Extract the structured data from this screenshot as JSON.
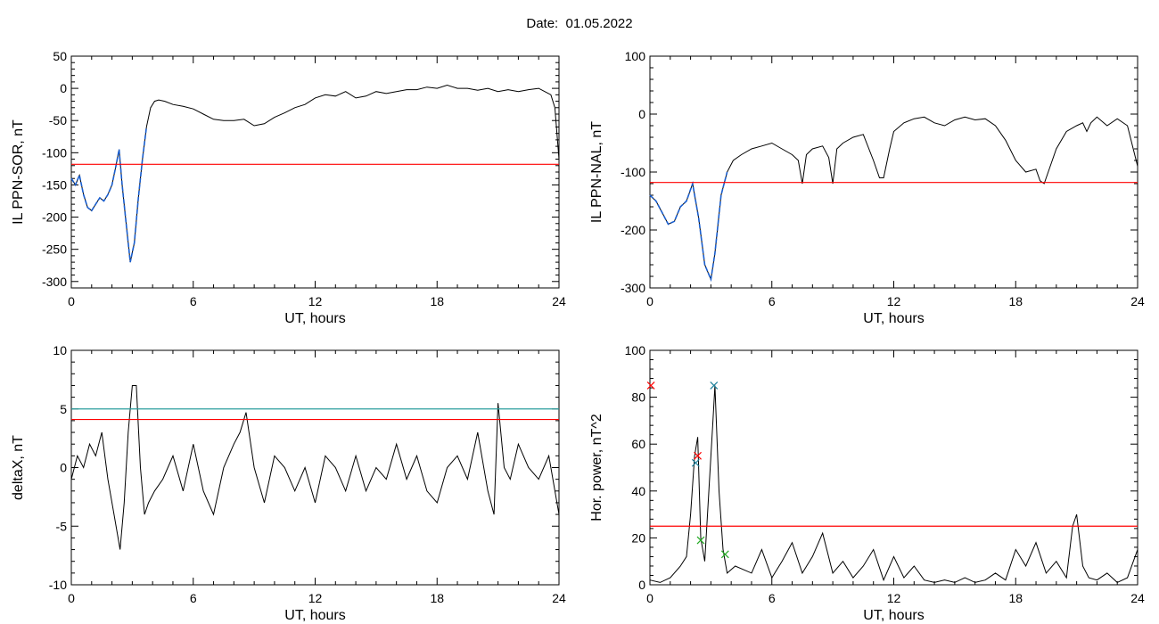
{
  "figure": {
    "title": "Date:  01.05.2022"
  },
  "chart_data": [
    {
      "type": "line",
      "xlabel": "UT, hours",
      "ylabel": "IL PPN-SOR, nT",
      "xlim": [
        0,
        24
      ],
      "ylim": [
        -310,
        50
      ],
      "xticks": [
        0,
        6,
        12,
        18,
        24
      ],
      "yticks": [
        50,
        0,
        -50,
        -100,
        -150,
        -200,
        -250,
        -300
      ],
      "threshold": -118,
      "threshold_color": "#ff0000",
      "series": [
        {
          "color": "#000000",
          "x": [
            0,
            0.2,
            0.4,
            0.6,
            0.8,
            1.0,
            1.2,
            1.4,
            1.6,
            1.8,
            2.0,
            2.2,
            2.35,
            2.5,
            2.7,
            2.9,
            3.1,
            3.3,
            3.5,
            3.7,
            3.9,
            4.1,
            4.3,
            4.6,
            5,
            5.5,
            6,
            6.5,
            7,
            7.5,
            8,
            8.5,
            9,
            9.5,
            10,
            10.5,
            11,
            11.5,
            12,
            12.5,
            13,
            13.5,
            14,
            14.5,
            15,
            15.5,
            16,
            16.5,
            17,
            17.5,
            18,
            18.5,
            19,
            19.5,
            20,
            20.5,
            21,
            21.5,
            22,
            22.5,
            23,
            23.3,
            23.6,
            23.8,
            24
          ],
          "y": [
            -140,
            -150,
            -135,
            -165,
            -185,
            -190,
            -180,
            -170,
            -175,
            -165,
            -150,
            -120,
            -95,
            -150,
            -210,
            -270,
            -240,
            -170,
            -110,
            -60,
            -30,
            -20,
            -18,
            -20,
            -25,
            -28,
            -32,
            -40,
            -48,
            -50,
            -50,
            -48,
            -58,
            -55,
            -45,
            -38,
            -30,
            -25,
            -15,
            -10,
            -12,
            -5,
            -15,
            -12,
            -5,
            -8,
            -5,
            -2,
            -2,
            2,
            0,
            5,
            0,
            0,
            -3,
            0,
            -5,
            -2,
            -5,
            -2,
            0,
            -5,
            -10,
            -30,
            -110
          ]
        },
        {
          "color": "#1a5fd0",
          "x": [
            0,
            0.2,
            0.4,
            0.6,
            0.8,
            1.0,
            1.2,
            1.4,
            1.6,
            1.8,
            2.0,
            2.2,
            2.35,
            2.5,
            2.7,
            2.9,
            3.1,
            3.3,
            3.5,
            3.7
          ],
          "y": [
            -140,
            -150,
            -135,
            -165,
            -185,
            -190,
            -180,
            -170,
            -175,
            -165,
            -150,
            -120,
            -95,
            -150,
            -210,
            -270,
            -240,
            -170,
            -110,
            -60
          ]
        }
      ]
    },
    {
      "type": "line",
      "xlabel": "UT, hours",
      "ylabel": "IL PPN-NAL, nT",
      "xlim": [
        0,
        24
      ],
      "ylim": [
        -300,
        100
      ],
      "xticks": [
        0,
        6,
        12,
        18,
        24
      ],
      "yticks": [
        100,
        0,
        -100,
        -200,
        -300
      ],
      "threshold": -118,
      "threshold_color": "#ff0000",
      "series": [
        {
          "color": "#000000",
          "x": [
            0,
            0.3,
            0.6,
            0.9,
            1.2,
            1.5,
            1.8,
            2.1,
            2.4,
            2.7,
            3.0,
            3.2,
            3.5,
            3.8,
            4.1,
            4.5,
            5,
            5.5,
            6,
            6.5,
            7,
            7.3,
            7.5,
            7.7,
            8,
            8.5,
            8.8,
            9,
            9.2,
            9.5,
            10,
            10.5,
            11,
            11.3,
            11.5,
            11.8,
            12,
            12.5,
            13,
            13.5,
            14,
            14.5,
            15,
            15.5,
            16,
            16.5,
            17,
            17.5,
            18,
            18.5,
            19,
            19.2,
            19.4,
            19.7,
            20,
            20.5,
            21,
            21.3,
            21.5,
            21.7,
            22,
            22.5,
            23,
            23.5,
            24
          ],
          "y": [
            -140,
            -150,
            -170,
            -190,
            -185,
            -160,
            -150,
            -120,
            -180,
            -260,
            -285,
            -240,
            -140,
            -100,
            -80,
            -70,
            -60,
            -55,
            -50,
            -60,
            -70,
            -80,
            -120,
            -70,
            -60,
            -55,
            -75,
            -120,
            -60,
            -50,
            -40,
            -35,
            -80,
            -110,
            -110,
            -60,
            -30,
            -15,
            -8,
            -5,
            -15,
            -20,
            -10,
            -5,
            -10,
            -8,
            -20,
            -45,
            -80,
            -100,
            -95,
            -115,
            -120,
            -90,
            -60,
            -30,
            -20,
            -15,
            -30,
            -15,
            -5,
            -20,
            -8,
            -20,
            -90
          ]
        },
        {
          "color": "#1a5fd0",
          "x": [
            0,
            0.3,
            0.6,
            0.9,
            1.2,
            1.5,
            1.8,
            2.1,
            2.4,
            2.7,
            3.0,
            3.2,
            3.5,
            3.8
          ],
          "y": [
            -140,
            -150,
            -170,
            -190,
            -185,
            -160,
            -150,
            -120,
            -180,
            -260,
            -285,
            -240,
            -140,
            -100
          ]
        }
      ]
    },
    {
      "type": "line",
      "xlabel": "UT, hours",
      "ylabel": "deltaX, nT",
      "xlim": [
        0,
        24
      ],
      "ylim": [
        -10,
        10
      ],
      "xticks": [
        0,
        6,
        12,
        18,
        24
      ],
      "yticks": [
        10,
        5,
        0,
        -5,
        -10
      ],
      "thresholds": [
        {
          "value": 5.0,
          "color": "#2a9d9d"
        },
        {
          "value": 4.1,
          "color": "#ff0000"
        }
      ],
      "series": [
        {
          "color": "#000000",
          "x": [
            0,
            0.3,
            0.6,
            0.9,
            1.2,
            1.5,
            1.8,
            2.1,
            2.4,
            2.6,
            2.8,
            3.0,
            3.2,
            3.4,
            3.6,
            3.8,
            4.1,
            4.5,
            5,
            5.5,
            6,
            6.5,
            7,
            7.5,
            8,
            8.3,
            8.6,
            9,
            9.5,
            10,
            10.5,
            11,
            11.5,
            12,
            12.5,
            13,
            13.5,
            14,
            14.5,
            15,
            15.5,
            16,
            16.5,
            17,
            17.5,
            18,
            18.5,
            19,
            19.5,
            20,
            20.5,
            20.8,
            21,
            21.3,
            21.6,
            22,
            22.5,
            23,
            23.5,
            24
          ],
          "y": [
            -1,
            1,
            0,
            2,
            1,
            3,
            -1,
            -4,
            -7,
            -3,
            3,
            7,
            7,
            0,
            -4,
            -3,
            -2,
            -1,
            1,
            -2,
            2,
            -2,
            -4,
            0,
            2,
            3,
            4.7,
            0,
            -3,
            1,
            0,
            -2,
            0,
            -3,
            1,
            0,
            -2,
            1,
            -2,
            0,
            -1,
            2,
            -1,
            1,
            -2,
            -3,
            0,
            1,
            -1,
            3,
            -2,
            -4,
            5.5,
            0,
            -1,
            2,
            0,
            -1,
            1,
            -4
          ]
        }
      ]
    },
    {
      "type": "line",
      "xlabel": "UT, hours",
      "ylabel": "Hor. power, nT^2",
      "xlim": [
        0,
        24
      ],
      "ylim": [
        0,
        100
      ],
      "xticks": [
        0,
        6,
        12,
        18,
        24
      ],
      "yticks": [
        100,
        80,
        60,
        40,
        20,
        0
      ],
      "threshold": 25,
      "threshold_color": "#ff0000",
      "series": [
        {
          "color": "#000000",
          "x": [
            0,
            0.5,
            1,
            1.5,
            1.8,
            2.0,
            2.2,
            2.35,
            2.5,
            2.7,
            2.9,
            3.1,
            3.2,
            3.4,
            3.6,
            3.8,
            4.2,
            5,
            5.5,
            6,
            6.5,
            7,
            7.5,
            8,
            8.5,
            9,
            9.5,
            10,
            10.5,
            11,
            11.5,
            12,
            12.5,
            13,
            13.5,
            14,
            14.5,
            15,
            15.5,
            16,
            16.5,
            17,
            17.5,
            18,
            18.5,
            19,
            19.5,
            20,
            20.5,
            20.8,
            21,
            21.3,
            21.6,
            22,
            22.5,
            23,
            23.5,
            24
          ],
          "y": [
            2,
            1,
            3,
            8,
            12,
            30,
            55,
            63,
            20,
            10,
            40,
            70,
            85,
            40,
            15,
            5,
            8,
            5,
            15,
            3,
            10,
            18,
            5,
            12,
            22,
            5,
            10,
            3,
            8,
            15,
            2,
            12,
            3,
            8,
            2,
            1,
            2,
            1,
            3,
            1,
            2,
            5,
            2,
            15,
            8,
            18,
            5,
            10,
            3,
            25,
            30,
            8,
            3,
            2,
            5,
            1,
            3,
            15
          ]
        }
      ],
      "markers": [
        {
          "x": 2.35,
          "y": 55,
          "color": "#ff0000"
        },
        {
          "x": 2.25,
          "y": 52,
          "color": "#1a7f9a"
        },
        {
          "x": 3.15,
          "y": 85,
          "color": "#1a7f9a"
        },
        {
          "x": 2.5,
          "y": 19,
          "color": "#22aa22"
        },
        {
          "x": 3.7,
          "y": 13,
          "color": "#22aa22"
        },
        {
          "x": 0.05,
          "y": 85,
          "color": "#ff0000"
        }
      ]
    }
  ]
}
